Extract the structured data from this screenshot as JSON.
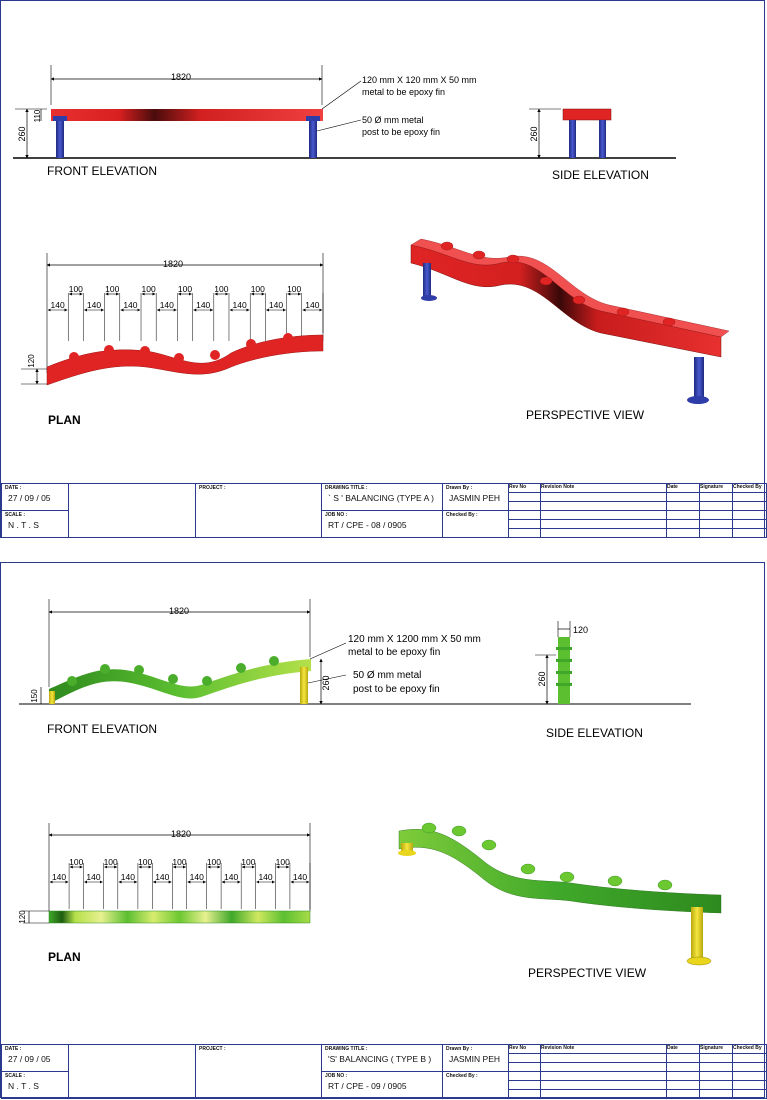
{
  "sheets": [
    {
      "front_elevation_label": "FRONT  ELEVATION",
      "side_elevation_label": "SIDE  ELEVATION",
      "plan_label": "PLAN",
      "perspective_label": "PERSPECTIVE  VIEW",
      "overall_length": "1820",
      "height_dim": "260",
      "beam_depth_dim": "110",
      "plan_width_dim": "120",
      "beam_note_line1": "120 mm X 120 mm X 50 mm",
      "beam_note_line2": "metal to be  epoxy fin",
      "post_note_line1": "50 Ø mm  metal",
      "post_note_line2": "post to be epoxy fin",
      "plan_spacings_lower": [
        "140",
        "140",
        "140",
        "140",
        "140",
        "140",
        "140",
        "140"
      ],
      "plan_spacings_upper": [
        "100",
        "100",
        "100",
        "100",
        "100",
        "100",
        "100"
      ],
      "title_block": {
        "date_label": "DATE  :",
        "date": "27 / 09 / 05",
        "scale_label": "SCALE :",
        "scale": "N . T . S",
        "project_label": "PROJECT  :",
        "drawing_title_label": "DRAWING  TITLE  :",
        "drawing_title": "` S ' BALANCING (TYPE A )",
        "job_no_label": "JOB  NO  :",
        "job_no": "RT / CPE - 08 / 0905",
        "drawn_by_label": "Drawn  By :",
        "drawn_by": "JASMIN  PEH",
        "checked_by_label": "Checked  By :",
        "rev_no_label": "Rev  No",
        "revision_note_label": "Revision  Note",
        "date_col_label": "Date",
        "signature_label": "Signature",
        "checked_col_label": "Checked  By"
      }
    },
    {
      "front_elevation_label": "FRONT  ELEVATION",
      "side_elevation_label": "SIDE  ELEVATION",
      "plan_label": "PLAN",
      "perspective_label": "PERSPECTIVE  VIEW",
      "overall_length": "1820",
      "height_dim": "260",
      "end_height_dim": "150",
      "side_width_dim": "120",
      "plan_width_dim": "120",
      "beam_note_line1": "120 mm  X  1200 mm  X  50 mm",
      "beam_note_line2": "metal to be epoxy fin",
      "post_note_line1": "50 Ø  mm  metal",
      "post_note_line2": "post to be  epoxy fin",
      "plan_spacings_lower": [
        "140",
        "140",
        "140",
        "140",
        "140",
        "140",
        "140",
        "140"
      ],
      "plan_spacings_upper": [
        "100",
        "100",
        "100",
        "100",
        "100",
        "100",
        "100"
      ],
      "title_block": {
        "date_label": "DATE  :",
        "date": "27 / 09 / 05",
        "scale_label": "SCALE :",
        "scale": "N . T . S",
        "project_label": "PROJECT  :",
        "drawing_title_label": "DRAWING  TITLE  :",
        "drawing_title": "'S' BALANCING  ( TYPE B )",
        "job_no_label": "JOB  NO  :",
        "job_no": "RT / CPE - 09 / 0905",
        "drawn_by_label": "Drawn  By :",
        "drawn_by": "JASMIN  PEH",
        "checked_by_label": "Checked  By :",
        "rev_no_label": "Rev  No",
        "revision_note_label": "Revision  Note",
        "date_col_label": "Date",
        "signature_label": "Signature",
        "checked_col_label": "Checked  By"
      }
    }
  ],
  "colors": {
    "sheet_border": "#2b3a8f",
    "type_a_beam": "#e02424",
    "type_a_beam_dark": "#5a0f0f",
    "type_a_post": "#2f3da8",
    "type_b_beam": "#3fa82a",
    "type_b_beam_light": "#b4e04a",
    "type_b_post": "#e8d51c",
    "dimension_line": "#000000"
  }
}
